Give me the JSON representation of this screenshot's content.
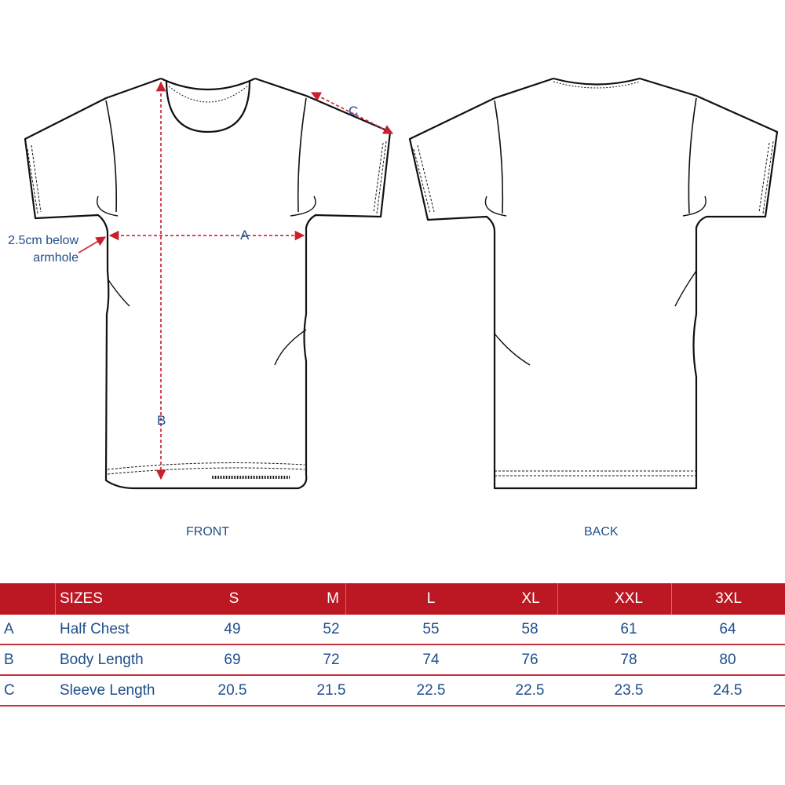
{
  "colors": {
    "accent": "#bb1823",
    "text": "#1f4e8a",
    "outline": "#111111"
  },
  "diagram": {
    "front_label": "FRONT",
    "back_label": "BACK",
    "measure_a": "A",
    "measure_b": "B",
    "measure_c": "C",
    "note_line1": "2.5cm below",
    "note_line2": "armhole"
  },
  "table": {
    "header": {
      "label": "SIZES",
      "sizes": [
        "S",
        "M",
        "L",
        "XL",
        "XXL",
        "3XL"
      ]
    },
    "rows": [
      {
        "key": "A",
        "name": "Half Chest",
        "values": [
          "49",
          "52",
          "55",
          "58",
          "61",
          "64"
        ]
      },
      {
        "key": "B",
        "name": "Body Length",
        "values": [
          "69",
          "72",
          "74",
          "76",
          "78",
          "80"
        ]
      },
      {
        "key": "C",
        "name": "Sleeve Length",
        "values": [
          "20.5",
          "21.5",
          "22.5",
          "22.5",
          "23.5",
          "24.5"
        ]
      }
    ]
  }
}
